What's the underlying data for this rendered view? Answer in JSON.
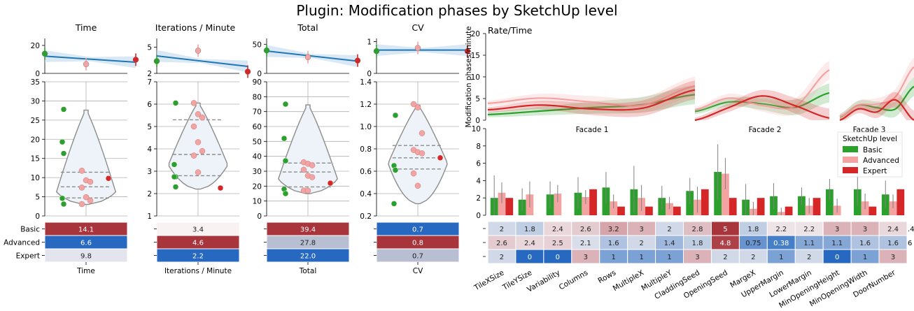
{
  "suptitle": "Plugin: Modification phases by SketchUp level",
  "colors": {
    "basic": "#2ca02c",
    "advanced": "#f4a3a3",
    "expert": "#d62728",
    "fit": "#1f77b4"
  },
  "chart_data": [
    {
      "type": "scatter",
      "panel": "Time",
      "title": "Time",
      "fit_ylim": [
        0,
        25
      ],
      "fit_yticks": [
        0,
        20
      ],
      "fit_means": [
        14.1,
        6.6,
        9.8
      ],
      "ylim": [
        0,
        35
      ],
      "yticks": [
        0,
        5,
        10,
        15,
        20,
        25,
        30,
        35
      ],
      "points": {
        "basic": [
          27.8,
          19.3,
          16.3,
          4.6,
          3.1
        ],
        "advanced": [
          11.8,
          9.3,
          8.9,
          7.4,
          4.9,
          4.0,
          3.1
        ],
        "expert": [
          9.8
        ]
      },
      "violin": {
        "min": 3.0,
        "max": 27.6,
        "q1": 4.7,
        "median": 7.6,
        "q3": 11.4
      },
      "table_rows": [
        "Basic",
        "Advanced",
        "Expert"
      ],
      "table_values": [
        "14.1",
        "6.6",
        "9.8"
      ],
      "table_colors": [
        "#a8343c",
        "#2769c0",
        "#e4e4ee"
      ],
      "xlabel": "Time"
    },
    {
      "type": "scatter",
      "panel": "Iterations / Minute",
      "title": "Iterations / Minute",
      "fit_ylim": [
        2,
        6
      ],
      "fit_yticks": [
        2,
        5
      ],
      "fit_means": [
        3.4,
        4.6,
        2.2
      ],
      "ylim": [
        1,
        7
      ],
      "yticks": [
        1,
        2,
        3,
        4,
        5,
        6,
        7
      ],
      "points": {
        "basic": [
          6.05,
          3.3,
          2.75,
          2.75,
          2.3
        ],
        "advanced": [
          6.05,
          5.55,
          5.4,
          5.0,
          4.3,
          3.9,
          3.7,
          2.95
        ],
        "expert": [
          2.25
        ]
      },
      "violin": {
        "min": 2.2,
        "max": 6.05,
        "q1": 2.8,
        "median": 3.75,
        "q3": 5.3
      },
      "table_rows": [
        "Basic",
        "Advanced",
        "Expert"
      ],
      "table_values": [
        "3.4",
        "4.6",
        "2.2"
      ],
      "table_colors": [
        "#f8f2f2",
        "#a8343c",
        "#2769c0"
      ],
      "xlabel": "Iterations / Minute"
    },
    {
      "type": "scatter",
      "panel": "Total",
      "title": "Total",
      "fit_ylim": [
        0,
        60
      ],
      "fit_yticks": [
        0,
        50
      ],
      "fit_means": [
        39.4,
        27.8,
        22.0
      ],
      "ylim": [
        0,
        90
      ],
      "yticks": [
        0,
        10,
        20,
        30,
        40,
        50,
        60,
        70,
        80,
        90
      ],
      "points": {
        "basic": [
          75,
          52,
          37,
          18,
          15
        ],
        "advanced": [
          36,
          35,
          34,
          31,
          27,
          26,
          17,
          17
        ],
        "expert": [
          22
        ]
      },
      "violin": {
        "min": 15,
        "max": 74.5,
        "q1": 19.5,
        "median": 29.5,
        "q3": 35.5
      },
      "table_rows": [
        "Basic",
        "Advanced",
        "Expert"
      ],
      "table_values": [
        "39.4",
        "27.8",
        "22.0"
      ],
      "table_colors": [
        "#a8343c",
        "#b9bfd2",
        "#2769c0"
      ],
      "xlabel": "Total"
    },
    {
      "type": "scatter",
      "panel": "CV",
      "title": "CV",
      "fit_ylim": [
        0,
        1.1
      ],
      "fit_yticks": [
        0,
        1
      ],
      "fit_means": [
        0.7,
        0.8,
        0.7
      ],
      "ylim": [
        0.2,
        1.4
      ],
      "yticks": [
        0.2,
        0.4,
        0.6,
        0.8,
        1.0,
        1.2,
        1.4
      ],
      "points": {
        "basic": [
          1.1,
          0.65,
          0.61,
          0.31
        ],
        "advanced": [
          1.2,
          1.17,
          0.94,
          0.79,
          0.77,
          0.76,
          0.58,
          0.47
        ],
        "expert": [
          0.72
        ]
      },
      "violin": {
        "min": 0.31,
        "max": 1.19,
        "q1": 0.62,
        "median": 0.72,
        "q3": 0.83
      },
      "table_rows": [
        "Basic",
        "Advanced",
        "Expert"
      ],
      "table_values": [
        "0.7",
        "0.8",
        "0.7"
      ],
      "table_colors": [
        "#2769c0",
        "#a8343c",
        "#b9bfd2"
      ],
      "xlabel": "CV"
    },
    {
      "type": "line",
      "panel": "Rate/Time",
      "title": "Rate/Time",
      "ylabel": "Modification phases/minute",
      "ylim": [
        0,
        20
      ],
      "yticks": [
        0,
        5,
        10,
        15,
        20
      ],
      "facets": [
        "Facade 1",
        "Facade 2",
        "Facade 3"
      ],
      "x": [
        0,
        0.25,
        0.5,
        0.75,
        1.0
      ],
      "series": [
        {
          "group": "basic",
          "facets": [
            [
              1.3,
              2.1,
              2.9,
              3.6,
              5.9
            ],
            [
              2.0,
              4.2,
              3.8,
              3.0,
              6.3
            ],
            [
              0.8,
              3.5,
              2.9,
              2.6,
              7.8
            ]
          ]
        },
        {
          "group": "advanced",
          "facets": [
            [
              3.9,
              5.1,
              4.2,
              3.5,
              7.9
            ],
            [
              2.4,
              5.1,
              3.4,
              3.3,
              11.6
            ],
            [
              0.9,
              3.5,
              3.7,
              5.4,
              12.3
            ]
          ]
        },
        {
          "group": "expert",
          "facets": [
            [
              2.4,
              3.5,
              2.6,
              2.8,
              7.0
            ],
            [
              0.0,
              2.9,
              5.6,
              3.3,
              0.5
            ],
            [
              0.0,
              2.6,
              1.9,
              4.7,
              0.0
            ]
          ]
        }
      ]
    },
    {
      "type": "bar",
      "panel": "Parameters",
      "ylim": [
        0,
        10
      ],
      "yticks": [
        0,
        2,
        4,
        6,
        8,
        10
      ],
      "legend_title": "SketchUp level",
      "legend_position": "top-right",
      "categories": [
        "TileXSize",
        "TileYSize",
        "Variability",
        "Columns",
        "Rows",
        "MultipleX",
        "MultipleY",
        "CladdingSeed",
        "OpeningSeed",
        "MargeX",
        "UpperMargin",
        "LowerMargin",
        "MinOpeningHeight",
        "MinOpeningWidth",
        "DoorNumber"
      ],
      "series": [
        {
          "name": "Basic",
          "group": "basic",
          "values": [
            2.0,
            1.8,
            2.4,
            2.6,
            3.2,
            3.0,
            2.0,
            2.8,
            5.0,
            1.8,
            2.2,
            2.2,
            3.0,
            3.0,
            2.4
          ],
          "err": [
            2.6,
            1.3,
            1.5,
            1.8,
            1.8,
            2.7,
            1.4,
            1.5,
            3.2,
            1.8,
            1.5,
            1.0,
            1.2,
            1.9,
            1.6
          ]
        },
        {
          "name": "Advanced",
          "group": "advanced",
          "values": [
            2.6,
            2.4,
            2.5,
            2.1,
            1.6,
            2.0,
            1.4,
            1.8,
            4.8,
            0.75,
            0.38,
            1.1,
            1.1,
            1.6,
            1.6
          ],
          "err": [
            1.2,
            1.5,
            1.0,
            0.8,
            0.8,
            1.5,
            0.7,
            1.5,
            1.8,
            0.8,
            0.5,
            0.9,
            0.8,
            0.9,
            0.8
          ]
        },
        {
          "name": "Expert",
          "group": "expert",
          "values": [
            2,
            0,
            0,
            3,
            1,
            1,
            1,
            3,
            2,
            2,
            1,
            2,
            0,
            1,
            3
          ],
          "err": []
        }
      ],
      "table_labels": [
        [
          "2",
          "1.8",
          "2.4",
          "2.6",
          "3.2",
          "3",
          "2",
          "2.8",
          "5",
          "1.8",
          "2.2",
          "2.2",
          "3",
          "3",
          "2.4"
        ],
        [
          "2.6",
          "2.4",
          "2.5",
          "2.1",
          "1.6",
          "2",
          "1.4",
          "1.8",
          "4.8",
          "0.75",
          "0.38",
          "1.1",
          "1.1",
          "1.6",
          "1.6"
        ],
        [
          "2",
          "0",
          "0",
          "3",
          "1",
          "1",
          "1",
          "3",
          "2",
          "2",
          "1",
          "2",
          "0",
          "1",
          "3"
        ]
      ],
      "table_overflow": [
        ".4",
        "6",
        ""
      ]
    }
  ]
}
